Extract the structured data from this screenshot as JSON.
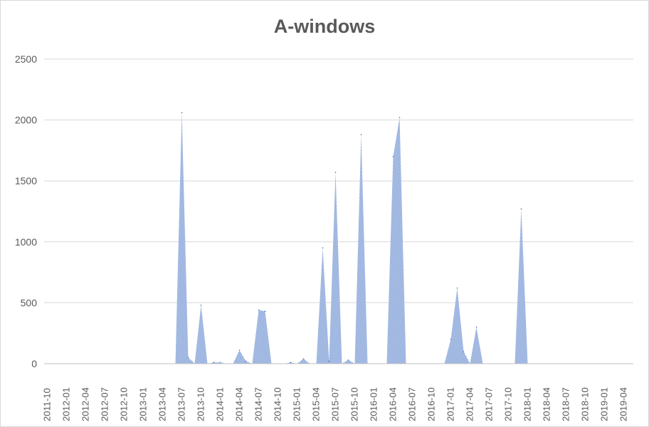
{
  "chart_data": {
    "type": "area",
    "title": "A-windows",
    "xlabel": "",
    "ylabel": "",
    "ylim": [
      0,
      2500
    ],
    "yticks": [
      0,
      500,
      1000,
      1500,
      2000,
      2500
    ],
    "grid": true,
    "legend": "none",
    "colors": {
      "fill": "#4472c4",
      "grid": "#d9d9d9",
      "text": "#595959"
    },
    "x_tick_labels": [
      "2011-10",
      "2012-01",
      "2012-04",
      "2012-07",
      "2012-10",
      "2013-01",
      "2013-04",
      "2013-07",
      "2013-10",
      "2014-01",
      "2014-04",
      "2014-07",
      "2014-10",
      "2015-01",
      "2015-04",
      "2015-07",
      "2015-10",
      "2016-01",
      "2016-04",
      "2016-07",
      "2016-10",
      "2017-01",
      "2017-04",
      "2017-07",
      "2017-10",
      "2018-01",
      "2018-04",
      "2018-07",
      "2018-10",
      "2019-01",
      "2019-04"
    ],
    "x": [
      "2011-10",
      "2011-11",
      "2011-12",
      "2012-01",
      "2012-02",
      "2012-03",
      "2012-04",
      "2012-05",
      "2012-06",
      "2012-07",
      "2012-08",
      "2012-09",
      "2012-10",
      "2012-11",
      "2012-12",
      "2013-01",
      "2013-02",
      "2013-03",
      "2013-04",
      "2013-05",
      "2013-06",
      "2013-07",
      "2013-08",
      "2013-09",
      "2013-10",
      "2013-11",
      "2013-12",
      "2014-01",
      "2014-02",
      "2014-03",
      "2014-04",
      "2014-05",
      "2014-06",
      "2014-07",
      "2014-08",
      "2014-09",
      "2014-10",
      "2014-11",
      "2014-12",
      "2015-01",
      "2015-02",
      "2015-03",
      "2015-04",
      "2015-05",
      "2015-06",
      "2015-07",
      "2015-08",
      "2015-09",
      "2015-10",
      "2015-11",
      "2015-12",
      "2016-01",
      "2016-02",
      "2016-03",
      "2016-04",
      "2016-05",
      "2016-06",
      "2016-07",
      "2016-08",
      "2016-09",
      "2016-10",
      "2016-11",
      "2016-12",
      "2017-01",
      "2017-02",
      "2017-03",
      "2017-04",
      "2017-05",
      "2017-06",
      "2017-07",
      "2017-08",
      "2017-09",
      "2017-10",
      "2017-11",
      "2017-12",
      "2018-01",
      "2018-02",
      "2018-03",
      "2018-04",
      "2018-05",
      "2018-06",
      "2018-07",
      "2018-08",
      "2018-09",
      "2018-10",
      "2018-11",
      "2018-12",
      "2019-01",
      "2019-02",
      "2019-03",
      "2019-04",
      "2019-05"
    ],
    "y": [
      0,
      0,
      0,
      0,
      0,
      0,
      0,
      0,
      0,
      0,
      0,
      0,
      0,
      0,
      0,
      0,
      0,
      0,
      0,
      0,
      0,
      2060,
      50,
      0,
      480,
      0,
      10,
      10,
      0,
      0,
      110,
      20,
      0,
      440,
      430,
      0,
      0,
      0,
      10,
      0,
      40,
      0,
      0,
      950,
      20,
      1570,
      0,
      30,
      0,
      1880,
      0,
      0,
      0,
      0,
      1700,
      2020,
      0,
      0,
      0,
      0,
      0,
      0,
      0,
      200,
      620,
      100,
      0,
      300,
      0,
      0,
      0,
      0,
      0,
      0,
      1270,
      0,
      0,
      0,
      0,
      0,
      0,
      0,
      0,
      0,
      0,
      0,
      0,
      0,
      0,
      0,
      0,
      0
    ]
  }
}
